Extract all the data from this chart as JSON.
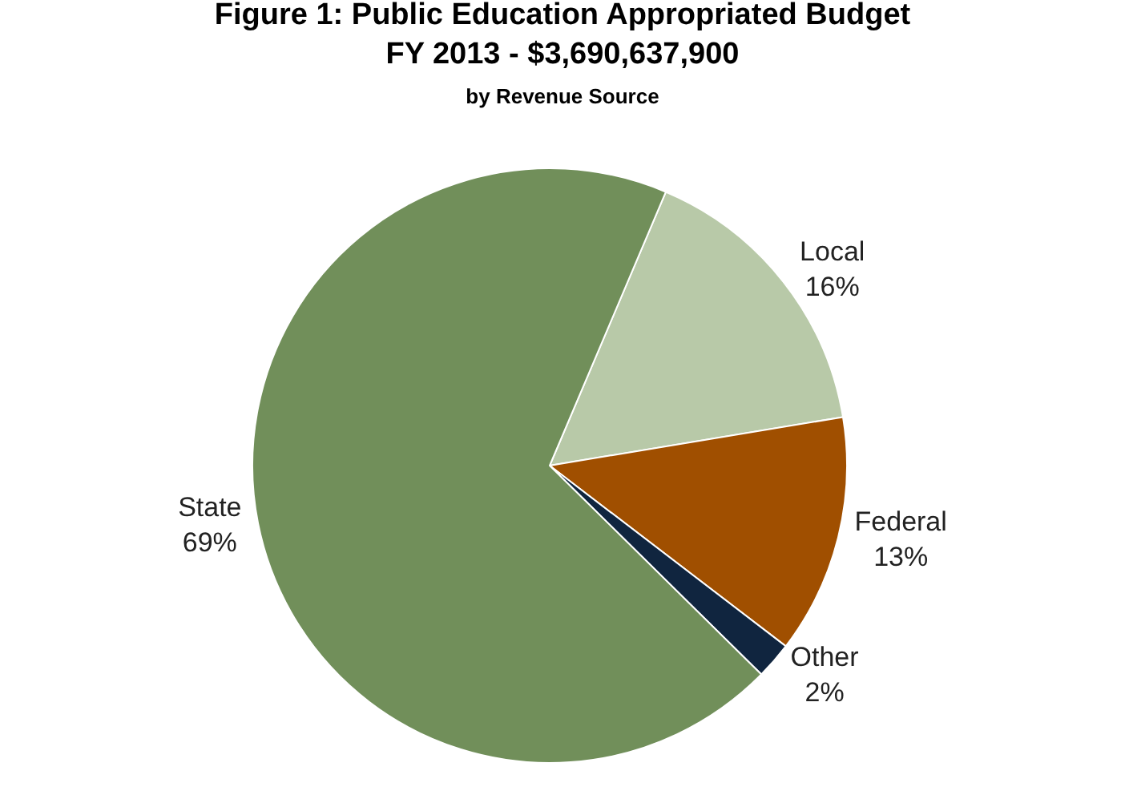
{
  "chart_data": {
    "type": "pie",
    "title": "Figure 1: Public Education Appropriated Budget\nFY 2013 - $3,690,637,900",
    "subtitle": "by Revenue Source",
    "categories": [
      "Local",
      "Federal",
      "Other",
      "State"
    ],
    "values": [
      16,
      13,
      2,
      69
    ],
    "value_labels": [
      "16%",
      "13%",
      "2%",
      "69%"
    ],
    "colors": [
      "#b8c9a8",
      "#a04f00",
      "#10253f",
      "#718f5a"
    ],
    "legend": false
  }
}
